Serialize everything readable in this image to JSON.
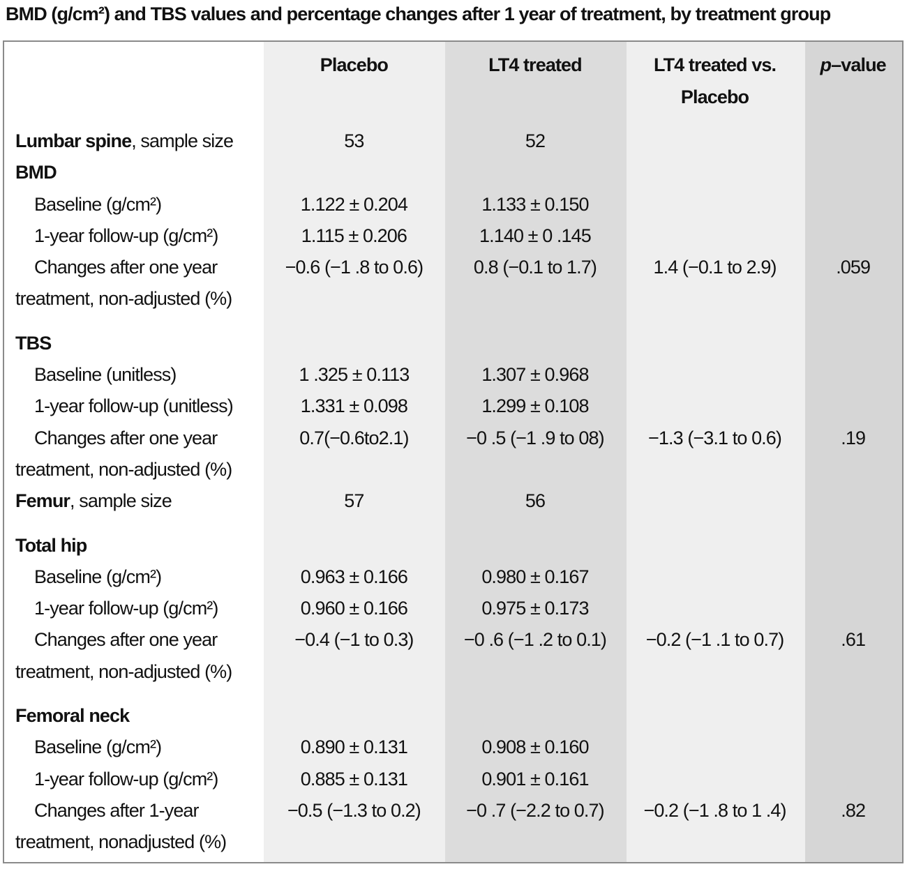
{
  "title": "BMD (g/cm²) and TBS values and percentage changes after 1 year of treatment, by treatment group",
  "columns": {
    "placebo": "Placebo",
    "lt4": "LT4 treated",
    "vs_line1": "LT4 treated vs.",
    "vs_line2": "Placebo",
    "p_italic": "p",
    "p_rest": "–value"
  },
  "lumbar": {
    "label_bold": "Lumbar spine",
    "label_rest": ", sample size",
    "placebo_n": "53",
    "lt4_n": "52",
    "bmd": {
      "header": "BMD",
      "baseline_label": "Baseline (g/cm²)",
      "baseline_placebo": "1.122 ± 0.204",
      "baseline_lt4": "1.133 ± 0.150",
      "followup_label": "1-year follow-up (g/cm²)",
      "followup_placebo": "1.115 ± 0.206",
      "followup_lt4": "1.140 ± 0 .145",
      "change_label_1": "Changes after one year",
      "change_label_2": "treatment, non-adjusted (%)",
      "change_placebo": "−0.6 (−1 .8 to 0.6)",
      "change_lt4": "0.8 (−0.1 to 1.7)",
      "change_vs": "1.4 (−0.1 to 2.9)",
      "p": ".059"
    },
    "tbs": {
      "header": "TBS",
      "baseline_label": "Baseline (unitless)",
      "baseline_placebo": "1 .325 ± 0.113",
      "baseline_lt4": "1.307 ± 0.968",
      "followup_label": "1-year follow-up (unitless)",
      "followup_placebo": "1.331 ± 0.098",
      "followup_lt4": "1.299 ± 0.108",
      "change_label_1": "Changes after one year",
      "change_label_2": "treatment, non-adjusted (%)",
      "change_placebo": "0.7(−0.6to2.1)",
      "change_lt4": "−0 .5 (−1 .9 to 08)",
      "change_vs": "−1.3 (−3.1 to 0.6)",
      "p": ".19"
    }
  },
  "femur": {
    "label_bold": "Femur",
    "label_rest": ", sample size",
    "placebo_n": "57",
    "lt4_n": "56",
    "hip": {
      "header": "Total hip",
      "baseline_label": "Baseline (g/cm²)",
      "baseline_placebo": "0.963 ± 0.166",
      "baseline_lt4": "0.980 ± 0.167",
      "followup_label": "1-year follow-up (g/cm²)",
      "followup_placebo": "0.960 ± 0.166",
      "followup_lt4": "0.975 ± 0.173",
      "change_label_1": "Changes after one year",
      "change_label_2": "treatment, non-adjusted (%)",
      "change_placebo": "−0.4 (−1 to 0.3)",
      "change_lt4": "−0 .6 (−1 .2 to 0.1)",
      "change_vs": "−0.2 (−1 .1 to 0.7)",
      "p": ".61"
    },
    "neck": {
      "header": "Femoral neck",
      "baseline_label": "Baseline (g/cm²)",
      "baseline_placebo": "0.890 ± 0.131",
      "baseline_lt4": "0.908 ± 0.160",
      "followup_label": "1-year follow-up (g/cm²)",
      "followup_placebo": "0.885 ± 0.131",
      "followup_lt4": "0.901 ± 0.161",
      "change_label_1": "Changes after 1-year",
      "change_label_2": "treatment, nonadjusted (%)",
      "change_placebo": "−0.5 (−1.3 to 0.2)",
      "change_lt4": "−0 .7 (−2.2 to 0.7)",
      "change_vs": "−0.2 (−1 .8 to 1 .4)",
      "p": ".82"
    }
  }
}
